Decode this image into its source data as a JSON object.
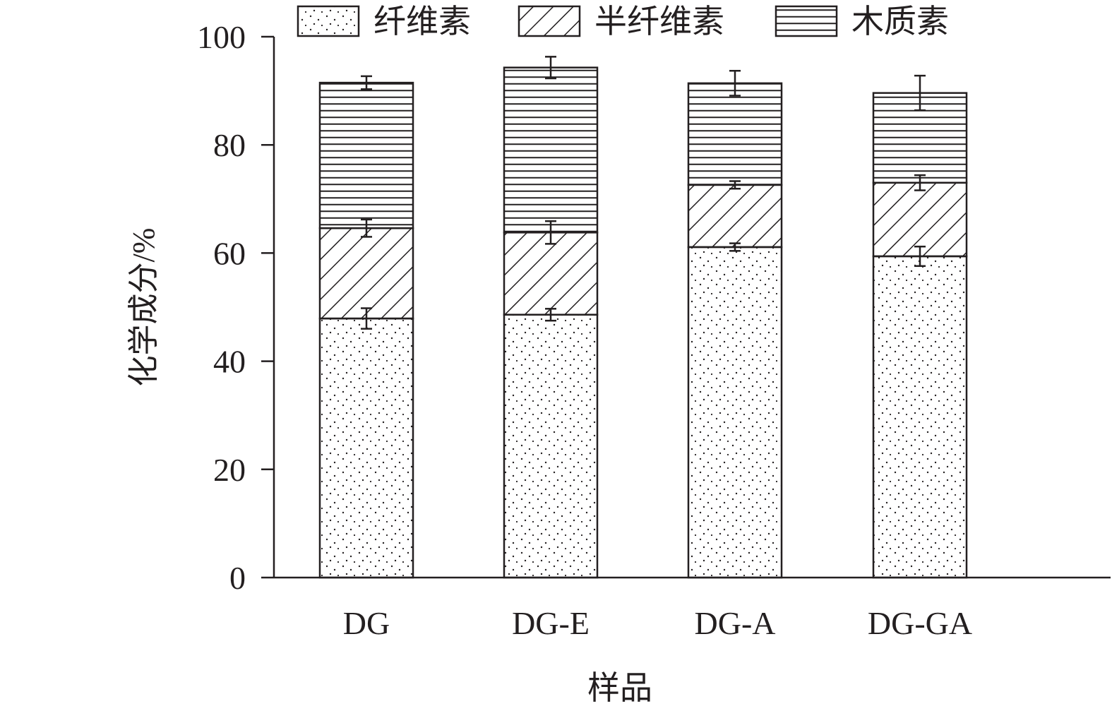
{
  "chart_data": {
    "type": "bar",
    "stacked": true,
    "title": "",
    "xlabel": "样品",
    "ylabel": "化学成分/%",
    "ylim": [
      0,
      100
    ],
    "yticks": [
      0,
      20,
      40,
      60,
      80,
      100
    ],
    "categories": [
      "DG",
      "DG-E",
      "DG-A",
      "DG-GA"
    ],
    "legend_position": "top",
    "grid": false,
    "series": [
      {
        "name": "纤维素",
        "pattern": "dots",
        "values": [
          47.9,
          48.6,
          61.1,
          59.4
        ],
        "errors": [
          1.9,
          1.1,
          0.7,
          1.8
        ]
      },
      {
        "name": "半纤维素",
        "pattern": "diagonal-hatch",
        "values": [
          16.7,
          15.2,
          11.5,
          13.6
        ],
        "errors": [
          1.6,
          2.1,
          0.7,
          1.4
        ]
      },
      {
        "name": "木质素",
        "pattern": "horizontal-lines",
        "values": [
          26.9,
          30.5,
          18.8,
          16.6
        ],
        "errors": [
          1.2,
          2.0,
          2.3,
          3.2
        ]
      }
    ],
    "colors": {
      "stroke": "#231f20",
      "fill": "#ffffff"
    }
  }
}
